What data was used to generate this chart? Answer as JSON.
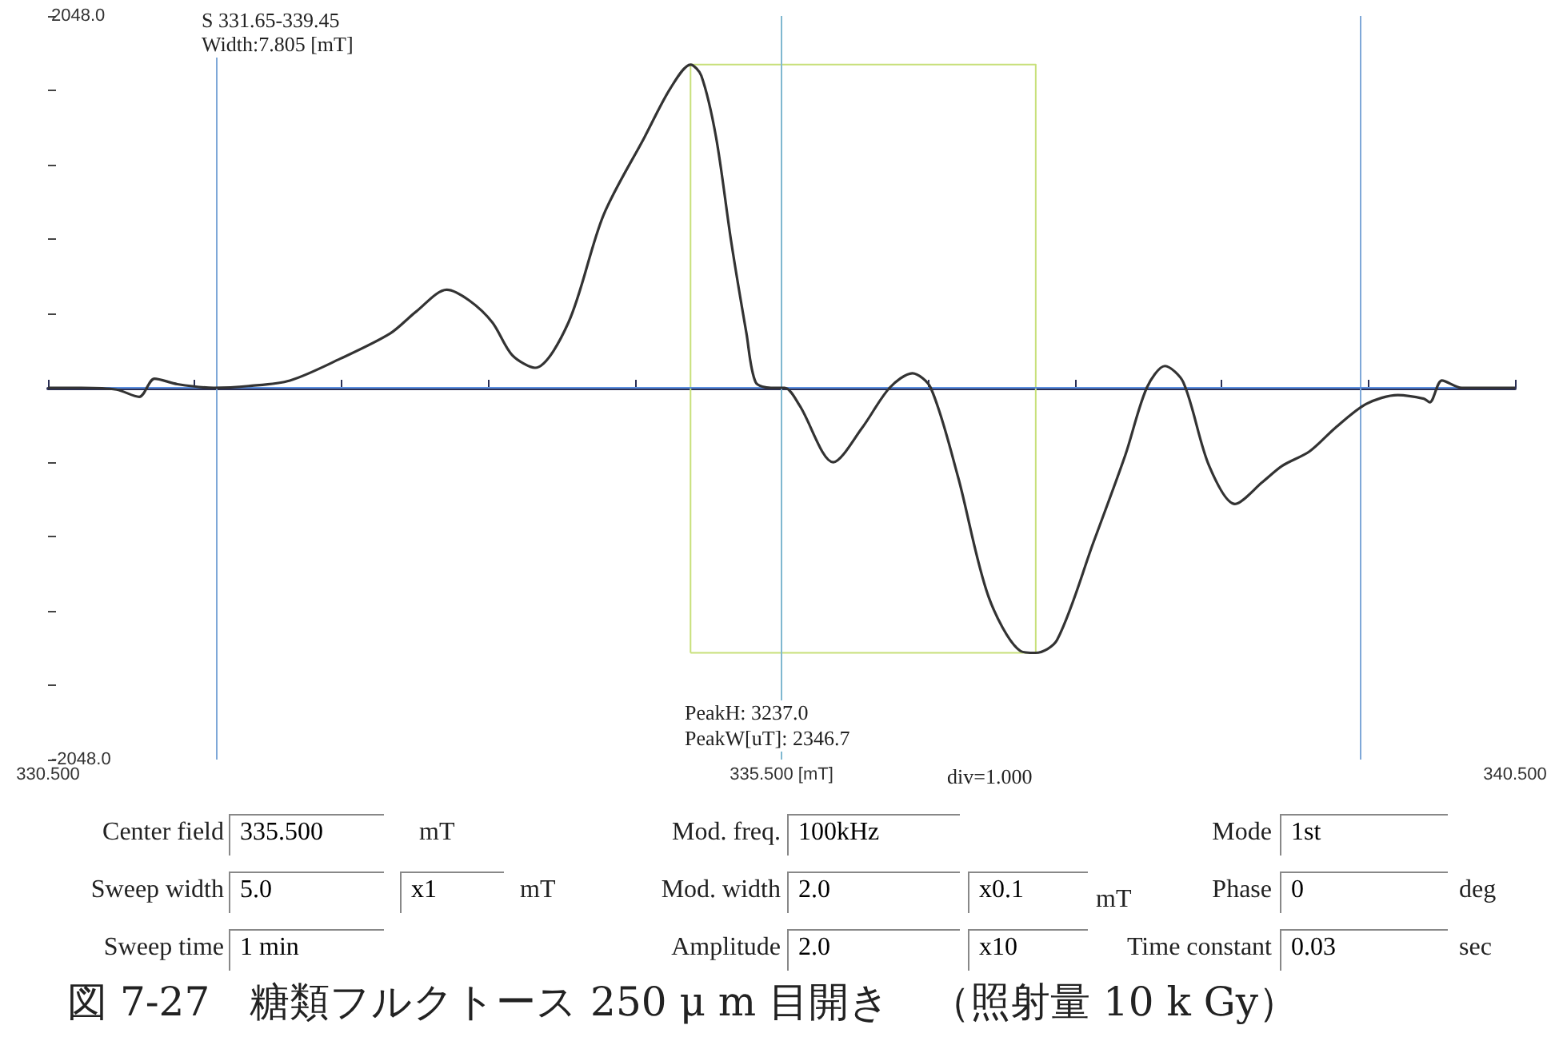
{
  "chart_data": {
    "type": "line",
    "title": "図 7-27　糖類フルクトース 250 μ m 目開き　（照射量 10 k Gy）",
    "annotations": [
      "S  331.65-339.45",
      "Width:7.805  [mT]",
      "PeakH: 3237.0",
      "PeakW[uT]: 2346.7",
      "div=1.000",
      "Center field",
      "335.500",
      "mT",
      "Sweep width",
      "5.0",
      "x1",
      "mT",
      "Sweep time",
      "1  min",
      "Mod. freq.",
      "100kHz",
      "Mod. width",
      "2.0",
      "x0.1",
      "mT",
      "Amplitude",
      "2.0",
      "x10",
      "Mode",
      "1st",
      "Phase",
      "0",
      "deg",
      "Time constant",
      "0.03",
      "sec"
    ],
    "xlim": [
      330.5,
      340.5
    ],
    "ylim": [
      -2048,
      2048
    ],
    "xticks": [
      {
        "value": 330.5,
        "label": "330.500"
      },
      {
        "value": 331.5,
        "label": null
      },
      {
        "value": 332.5,
        "label": null
      },
      {
        "value": 333.5,
        "label": null
      },
      {
        "value": 334.5,
        "label": null
      },
      {
        "value": 335.5,
        "label": "335.500 [mT]"
      },
      {
        "value": 336.5,
        "label": null
      },
      {
        "value": 337.5,
        "label": null
      },
      {
        "value": 338.5,
        "label": null
      },
      {
        "value": 339.5,
        "label": null
      },
      {
        "value": 340.5,
        "label": "340.500"
      }
    ],
    "yticks": [
      {
        "value": -2048,
        "label": "-2048.0"
      },
      {
        "value": -1638.4,
        "label": null
      },
      {
        "value": -1228.8,
        "label": null
      },
      {
        "value": -819.2,
        "label": null
      },
      {
        "value": -409.6,
        "label": null
      },
      {
        "value": 0,
        "label": null
      },
      {
        "value": 409.6,
        "label": null
      },
      {
        "value": 819.2,
        "label": null
      },
      {
        "value": 1228.8,
        "label": null
      },
      {
        "value": 1638.4,
        "label": null
      },
      {
        "value": 2048,
        "label": "2048.0"
      }
    ],
    "ref_lines": [
      {
        "axis": "x",
        "value": 331.65,
        "color": "#7fa8d8"
      },
      {
        "axis": "x",
        "value": 335.5,
        "color": "#7fb8d0"
      },
      {
        "axis": "x",
        "value": 339.45,
        "color": "#7fa8d8"
      },
      {
        "axis": "y",
        "value": 0,
        "color": "#5b8fe0"
      }
    ],
    "marker": "none",
    "series": [
      {
        "color": "#333333",
        "x": [
          330.5,
          330.728,
          330.967,
          331.122,
          331.226,
          331.382,
          331.631,
          331.869,
          332.149,
          332.492,
          332.834,
          333.01,
          333.218,
          333.373,
          333.529,
          333.664,
          333.82,
          334.048,
          334.286,
          334.566,
          334.743,
          334.88,
          334.953,
          335.054,
          335.158,
          335.261,
          335.324,
          335.428,
          335.521,
          335.625,
          335.853,
          336.05,
          336.237,
          336.392,
          336.517,
          336.703,
          336.911,
          337.129,
          337.233,
          337.378,
          337.627,
          337.844,
          337.99,
          338.114,
          338.239,
          338.415,
          338.591,
          338.778,
          338.913,
          339.1,
          339.276,
          339.484,
          339.701,
          339.878,
          339.919,
          340.002,
          340.137,
          340.5
        ],
        "values": [
          0,
          0,
          -10,
          -50,
          50,
          20,
          0,
          10,
          40,
          160,
          300,
          420,
          540,
          480,
          360,
          180,
          110,
          360,
          950,
          1380,
          1650,
          1780,
          1720,
          1380,
          800,
          300,
          30,
          0,
          0,
          -100,
          -410,
          -220,
          0,
          80,
          0,
          -490,
          -1150,
          -1450,
          -1460,
          -1390,
          -850,
          -370,
          0,
          120,
          30,
          -430,
          -640,
          -520,
          -430,
          -350,
          -220,
          -90,
          -40,
          -60,
          -80,
          40,
          0,
          0
        ]
      },
      {
        "color": "#c8e07a",
        "x": [
          334.88,
          334.88,
          337.233,
          337.233
        ],
        "values": [
          -1460,
          1780,
          1780,
          -1460
        ]
      },
      {
        "color": "#c8e07a",
        "x": [
          334.88,
          337.233
        ],
        "values": [
          -1460,
          -1460
        ]
      }
    ]
  }
}
